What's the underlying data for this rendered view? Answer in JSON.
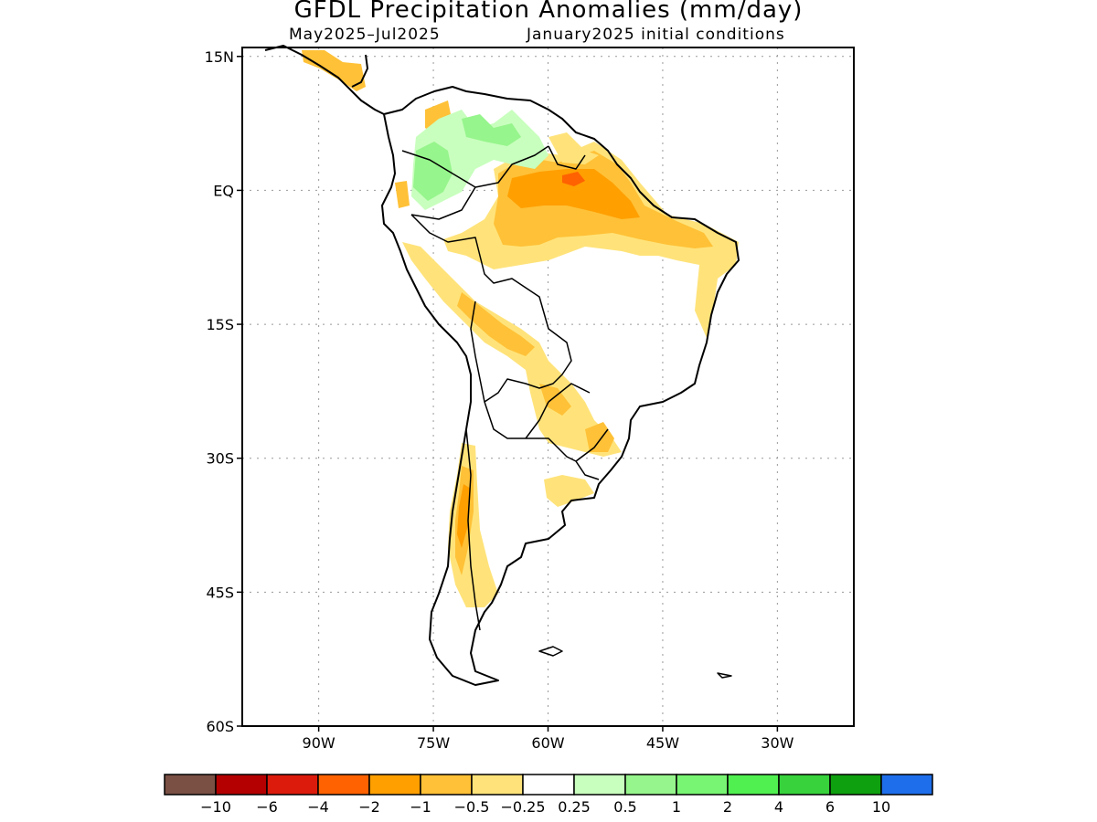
{
  "title": "GFDL Precipitation Anomalies (mm/day)",
  "subtitle_left": "May2025–Jul2025",
  "subtitle_right": "January2025 initial conditions",
  "lat_labels": [
    "15N",
    "EQ",
    "15S",
    "30S",
    "45S",
    "60S"
  ],
  "lon_labels": [
    "90W",
    "75W",
    "60W",
    "45W",
    "30W"
  ],
  "lat_values": [
    15,
    0,
    -15,
    -30,
    -45,
    -60
  ],
  "lon_values": [
    -90,
    -75,
    -60,
    -45,
    -30
  ],
  "map_extent": {
    "lon_min": -100,
    "lon_max": -20,
    "lat_min": -60,
    "lat_max": 16
  },
  "grid": {
    "lines": true,
    "style": "dotted",
    "color": "#999999"
  },
  "colorbar": {
    "colors": [
      "#7a5044",
      "#b40000",
      "#dc1b0c",
      "#ff6200",
      "#ff9f00",
      "#ffc137",
      "#ffe37a",
      "#ffffff",
      "#c8ffbe",
      "#96f58c",
      "#78f573",
      "#50f050",
      "#37d23c",
      "#0fa00f",
      "#1e6eeb"
    ],
    "labels": [
      "−10",
      "−6",
      "−4",
      "−2",
      "−1",
      "−0.5",
      "−0.25",
      "0.25",
      "0.5",
      "1",
      "2",
      "4",
      "6",
      "10"
    ]
  },
  "anomaly_regions": [
    {
      "name": "Amazon basin / northern Brazil dry anomaly",
      "category": "-0.5",
      "color": "#ffc137"
    },
    {
      "name": "Eastern Amazon strong dry anomaly",
      "category": "-2",
      "color": "#ff6200"
    },
    {
      "name": "Northeast Brazil coast dry anomaly",
      "category": "-0.25",
      "color": "#ffe37a"
    },
    {
      "name": "Colombia / Venezuela wet anomaly",
      "category": "0.5",
      "color": "#96f58c"
    },
    {
      "name": "Andes / Bolivia dry anomaly",
      "category": "-0.5",
      "color": "#ffc137"
    },
    {
      "name": "Paraguay / southern Brazil dry anomaly",
      "category": "-0.25",
      "color": "#ffe37a"
    },
    {
      "name": "Central Chile dry anomaly",
      "category": "-1",
      "color": "#ff9f00"
    }
  ]
}
